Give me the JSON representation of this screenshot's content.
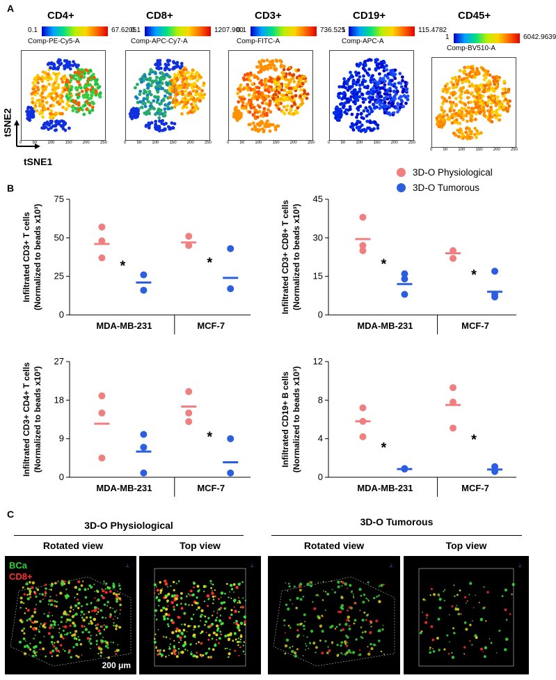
{
  "panel_labels": {
    "a": "A",
    "b": "B",
    "c": "C"
  },
  "colors": {
    "physio": "#f08080",
    "tumor": "#2b5fe0",
    "scope_bg": "#000000",
    "bca": "#2fd12f",
    "cd8": "#ff3030"
  },
  "tsne": {
    "x_axis_label": "tSNE1",
    "y_axis_label": "tSNE2",
    "tick_labels": [
      "0",
      "50",
      "100",
      "150",
      "200",
      "250"
    ],
    "markers": [
      {
        "name": "CD4+",
        "min": "0.1",
        "max": "67.6205",
        "param": "Comp-PE-Cy5-A"
      },
      {
        "name": "CD8+",
        "min": "0.1",
        "max": "1207.900",
        "param": "Comp-APC-Cy7-A"
      },
      {
        "name": "CD3+",
        "min": "0.1",
        "max": "736.525",
        "param": "Comp-FITC-A"
      },
      {
        "name": "CD19+",
        "min": "1",
        "max": "115.4782",
        "param": "Comp-APC-A"
      },
      {
        "name": "CD45+",
        "min": "1",
        "max": "6042.9639",
        "param": "Comp-BV510-A"
      }
    ]
  },
  "legend": {
    "physio": "3D-O Physiological",
    "tumor": "3D-O Tumorous"
  },
  "chart_data": [
    {
      "type": "scatter",
      "ylabel": "Infiltrated CD3+ T cells",
      "ylabel2": "(Normalized to beads x10³)",
      "ylim": [
        0,
        75
      ],
      "yticks": [
        "0",
        "25",
        "50",
        "75"
      ],
      "categories": [
        "MDA-MB-231",
        "MCF-7"
      ],
      "series": [
        {
          "name": "3D-O Physiological",
          "points": [
            [
              57,
              48,
              37
            ],
            [
              51,
              45,
              null
            ]
          ],
          "means": [
            46,
            47
          ]
        },
        {
          "name": "3D-O Tumorous",
          "points": [
            [
              26,
              16,
              null
            ],
            [
              43,
              17,
              null
            ]
          ],
          "means": [
            21,
            24
          ]
        }
      ],
      "significance": [
        "*",
        "*"
      ]
    },
    {
      "type": "scatter",
      "ylabel": "Infiltrated CD3+ CD8+ T cells",
      "ylabel2": "(Normalized to beads x10³)",
      "ylim": [
        0,
        45
      ],
      "yticks": [
        "0",
        "15",
        "30",
        "45"
      ],
      "categories": [
        "MDA-MB-231",
        "MCF-7"
      ],
      "series": [
        {
          "name": "3D-O Physiological",
          "points": [
            [
              38,
              27,
              25
            ],
            [
              25,
              22,
              null
            ]
          ],
          "means": [
            29.5,
            24
          ]
        },
        {
          "name": "3D-O Tumorous",
          "points": [
            [
              16,
              14,
              8
            ],
            [
              17,
              8,
              7
            ]
          ],
          "means": [
            12,
            9
          ]
        }
      ],
      "significance": [
        "*",
        "*"
      ]
    },
    {
      "type": "scatter",
      "ylabel": "Infiltrated CD3+ CD4+ T cells",
      "ylabel2": "(Normalized to beads x10³)",
      "ylim": [
        0,
        27
      ],
      "yticks": [
        "0",
        "9",
        "18",
        "27"
      ],
      "categories": [
        "MDA-MB-231",
        "MCF-7"
      ],
      "series": [
        {
          "name": "3D-O Physiological",
          "points": [
            [
              19,
              15,
              4.5
            ],
            [
              20,
              15,
              13
            ]
          ],
          "means": [
            12.5,
            16.5
          ]
        },
        {
          "name": "3D-O Tumorous",
          "points": [
            [
              10,
              7,
              1
            ],
            [
              9,
              1,
              null
            ]
          ],
          "means": [
            6,
            3.5
          ]
        }
      ],
      "significance": [
        "",
        "*"
      ]
    },
    {
      "type": "scatter",
      "ylabel": "Infiltrated CD19+ B cells",
      "ylabel2": "(Normalized to beads x10³)",
      "ylim": [
        0,
        12
      ],
      "yticks": [
        "0",
        "4",
        "8",
        "12"
      ],
      "categories": [
        "MDA-MB-231",
        "MCF-7"
      ],
      "series": [
        {
          "name": "3D-O Physiological",
          "points": [
            [
              7.2,
              5.8,
              4.2
            ],
            [
              9.3,
              7.8,
              5.1
            ]
          ],
          "means": [
            5.8,
            7.5
          ]
        },
        {
          "name": "3D-O Tumorous",
          "points": [
            [
              0.9,
              0.85,
              null
            ],
            [
              1.1,
              0.6,
              null
            ]
          ],
          "means": [
            0.85,
            0.8
          ]
        }
      ],
      "significance": [
        "*",
        "*"
      ]
    }
  ],
  "confocal": {
    "groups": [
      {
        "title": "3D-O Physiological"
      },
      {
        "title": "3D-O Tumorous"
      }
    ],
    "views": [
      "Rotated view",
      "Top view",
      "Rotated view",
      "Top view"
    ],
    "bca_label": "BCa",
    "cd8_label": "CD8+",
    "scale_label": "200 μm"
  }
}
